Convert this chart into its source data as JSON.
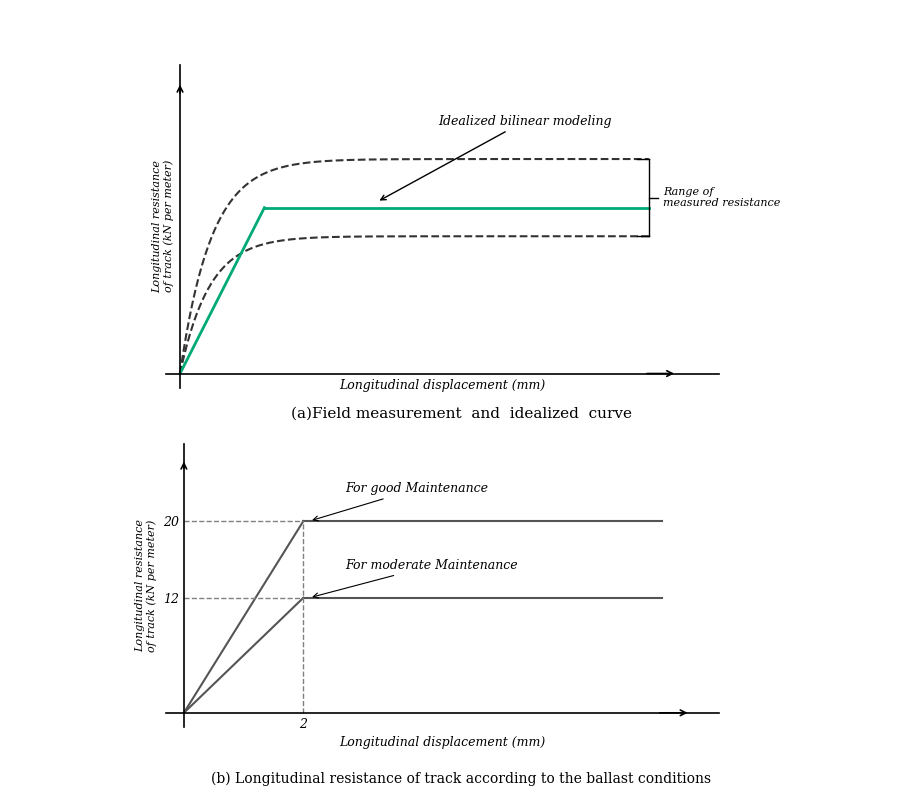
{
  "fig_width": 9.22,
  "fig_height": 8.08,
  "fig_dpi": 100,
  "background_color": "#ffffff",
  "top_title": "(a)Field measurement  and  idealized  curve",
  "bottom_title": "(b) Longitudinal resistance of track according to the ballast conditions",
  "upper_ylabel": "Longitudinal resistance\nof track (kN per meter)",
  "upper_xlabel": "Longitudinal displacement (mm)",
  "lower_ylabel": "Longitudinal resistance\nof track (kN per meter)",
  "lower_xlabel": "Longitudinal displacement (mm)",
  "upper_annotation1": "Idealized bilinear modeling",
  "upper_annotation2": "Range of\nmeasured resistance",
  "lower_label_good": "For good Maintenance",
  "lower_label_moderate": "For moderate Maintenance",
  "lower_yticks": [
    12,
    20
  ],
  "lower_xtick": 2,
  "gray_color": "#555555",
  "green_color": "#00aa77",
  "dashed_color": "#333333"
}
